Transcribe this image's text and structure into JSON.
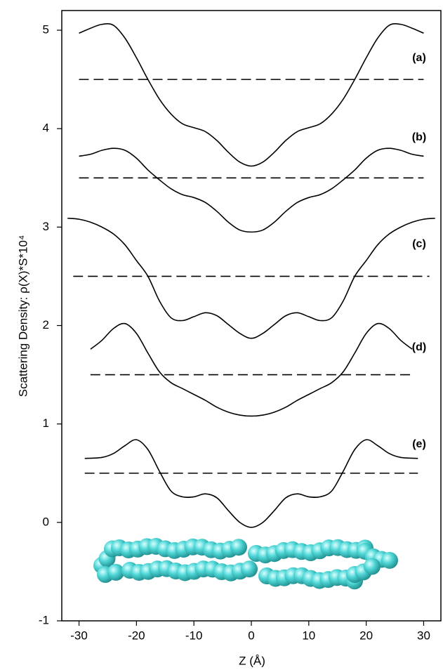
{
  "chart_data": {
    "type": "line",
    "x_label": "Z (Å)",
    "y_label": "Scattering Density: ρ(X)*S*10⁴",
    "annotations": [
      "(a)",
      "(b)",
      "(c)",
      "(d)",
      "(e)"
    ],
    "xlim": [
      -33,
      33
    ],
    "xticks": [
      -30,
      -20,
      -10,
      0,
      10,
      20,
      30
    ],
    "ylim": [
      -1,
      5.2
    ],
    "yticks": [
      -1,
      0,
      1,
      2,
      3,
      4,
      5
    ],
    "series": [
      {
        "color": "#000000",
        "dashed": false,
        "x": [
          -30,
          -28,
          -26,
          -24,
          -22,
          -20,
          -18,
          -16,
          -14,
          -12,
          -10,
          -8,
          -6,
          -4,
          -2,
          0,
          2,
          4,
          6,
          8,
          10,
          12,
          14,
          16,
          18,
          20,
          22,
          24,
          26,
          28,
          30
        ],
        "values": [
          4.97,
          5.02,
          5.06,
          5.05,
          4.92,
          4.72,
          4.5,
          4.3,
          4.15,
          4.05,
          4.01,
          3.97,
          3.88,
          3.76,
          3.66,
          3.62,
          3.66,
          3.76,
          3.88,
          3.97,
          4.01,
          4.05,
          4.15,
          4.3,
          4.5,
          4.72,
          4.92,
          5.05,
          5.06,
          5.02,
          4.97
        ]
      },
      {
        "color": "#000000",
        "dashed": true,
        "x": [
          -30,
          30
        ],
        "values": [
          4.5,
          4.5
        ]
      },
      {
        "color": "#000000",
        "dashed": false,
        "x": [
          -30,
          -28,
          -26,
          -24,
          -22,
          -20,
          -18,
          -16,
          -14,
          -12,
          -10,
          -8,
          -6,
          -4,
          -2,
          0,
          2,
          4,
          6,
          8,
          10,
          12,
          14,
          16,
          18,
          20,
          22,
          24,
          26,
          28,
          30
        ],
        "values": [
          3.72,
          3.74,
          3.78,
          3.8,
          3.78,
          3.7,
          3.58,
          3.48,
          3.39,
          3.33,
          3.3,
          3.25,
          3.16,
          3.05,
          2.97,
          2.95,
          2.97,
          3.05,
          3.16,
          3.25,
          3.3,
          3.33,
          3.39,
          3.48,
          3.58,
          3.7,
          3.78,
          3.8,
          3.78,
          3.74,
          3.72
        ]
      },
      {
        "color": "#000000",
        "dashed": true,
        "x": [
          -30,
          30
        ],
        "values": [
          3.5,
          3.5
        ]
      },
      {
        "color": "#000000",
        "dashed": false,
        "x": [
          -32,
          -30,
          -28,
          -26,
          -24,
          -22,
          -20,
          -18,
          -16,
          -14,
          -12,
          -10,
          -8,
          -6,
          -4,
          -2,
          0,
          2,
          4,
          6,
          8,
          10,
          12,
          14,
          16,
          18,
          20,
          22,
          24,
          26,
          28,
          30,
          32
        ],
        "values": [
          3.09,
          3.08,
          3.05,
          3.0,
          2.93,
          2.82,
          2.66,
          2.5,
          2.25,
          2.08,
          2.05,
          2.09,
          2.13,
          2.1,
          2.01,
          1.92,
          1.87,
          1.92,
          2.01,
          2.1,
          2.13,
          2.09,
          2.05,
          2.08,
          2.25,
          2.5,
          2.66,
          2.82,
          2.93,
          3.0,
          3.05,
          3.08,
          3.09
        ]
      },
      {
        "color": "#000000",
        "dashed": true,
        "x": [
          -31,
          31
        ],
        "values": [
          2.5,
          2.5
        ]
      },
      {
        "color": "#000000",
        "dashed": false,
        "x": [
          -28,
          -26,
          -24,
          -22,
          -20,
          -18,
          -16,
          -14,
          -12,
          -10,
          -8,
          -6,
          -4,
          -2,
          0,
          2,
          4,
          6,
          8,
          10,
          12,
          14,
          16,
          18,
          20,
          22,
          24,
          26,
          28
        ],
        "values": [
          1.76,
          1.85,
          1.97,
          2.02,
          1.92,
          1.72,
          1.53,
          1.42,
          1.36,
          1.3,
          1.24,
          1.17,
          1.12,
          1.09,
          1.08,
          1.09,
          1.12,
          1.17,
          1.24,
          1.3,
          1.36,
          1.42,
          1.53,
          1.72,
          1.92,
          2.02,
          1.97,
          1.85,
          1.76
        ]
      },
      {
        "color": "#000000",
        "dashed": true,
        "x": [
          -28,
          28
        ],
        "values": [
          1.5,
          1.5
        ]
      },
      {
        "color": "#000000",
        "dashed": false,
        "x": [
          -29,
          -26,
          -24,
          -22,
          -20,
          -18,
          -16,
          -14,
          -12,
          -10,
          -8,
          -6,
          -4,
          -2,
          0,
          2,
          4,
          6,
          8,
          10,
          12,
          14,
          16,
          18,
          20,
          22,
          24,
          26,
          29
        ],
        "values": [
          0.65,
          0.66,
          0.7,
          0.78,
          0.84,
          0.74,
          0.52,
          0.32,
          0.26,
          0.26,
          0.29,
          0.25,
          0.12,
          0.0,
          -0.05,
          0.0,
          0.12,
          0.25,
          0.29,
          0.26,
          0.26,
          0.32,
          0.52,
          0.74,
          0.84,
          0.78,
          0.7,
          0.66,
          0.65
        ]
      },
      {
        "color": "#000000",
        "dashed": true,
        "x": [
          -29,
          29
        ],
        "values": [
          0.5,
          0.5
        ]
      }
    ]
  }
}
